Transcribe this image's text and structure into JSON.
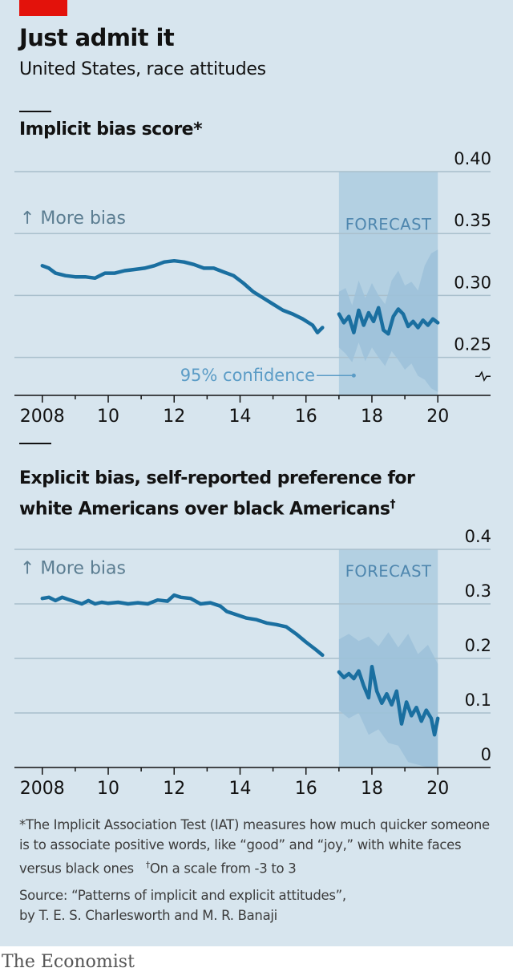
{
  "title": "Just admit it",
  "subtitle": "United States, race attitudes",
  "colors": {
    "background": "#d7e5ee",
    "line": "#1a6fa0",
    "forecast_band": "#b3d0e2",
    "confidence": "#9cc1d9",
    "accent_red": "#e3120b"
  },
  "chart_data": [
    {
      "type": "line",
      "title": "Implicit bias score*",
      "direction_label": "↑ More bias",
      "forecast_label": "FORECAST",
      "confidence_label": "95% confidence",
      "x_ticks": [
        2008,
        2010,
        2012,
        2014,
        2016,
        2018,
        2020
      ],
      "x_tick_labels": [
        "2008",
        "10",
        "12",
        "14",
        "16",
        "18",
        "20"
      ],
      "y_ticks": [
        0.25,
        0.3,
        0.35,
        0.4
      ],
      "y_tick_labels": [
        "0.25",
        "0.30",
        "0.35",
        "0.40"
      ],
      "xlim": [
        2007.3,
        2021.6
      ],
      "ylim": [
        0.22,
        0.4
      ],
      "y_axis_break": true,
      "forecast_range": [
        2017.0,
        2020.0
      ],
      "series": [
        {
          "role": "observed",
          "points": [
            [
              2008.0,
              0.324
            ],
            [
              2008.2,
              0.322
            ],
            [
              2008.4,
              0.318
            ],
            [
              2008.7,
              0.316
            ],
            [
              2009.0,
              0.315
            ],
            [
              2009.3,
              0.315
            ],
            [
              2009.6,
              0.314
            ],
            [
              2009.9,
              0.318
            ],
            [
              2010.2,
              0.318
            ],
            [
              2010.5,
              0.32
            ],
            [
              2010.8,
              0.321
            ],
            [
              2011.1,
              0.322
            ],
            [
              2011.4,
              0.324
            ],
            [
              2011.7,
              0.327
            ],
            [
              2012.0,
              0.328
            ],
            [
              2012.3,
              0.327
            ],
            [
              2012.6,
              0.325
            ],
            [
              2012.9,
              0.322
            ],
            [
              2013.2,
              0.322
            ],
            [
              2013.5,
              0.319
            ],
            [
              2013.8,
              0.316
            ],
            [
              2014.1,
              0.31
            ],
            [
              2014.4,
              0.303
            ],
            [
              2014.7,
              0.298
            ],
            [
              2015.0,
              0.293
            ],
            [
              2015.3,
              0.288
            ],
            [
              2015.6,
              0.285
            ],
            [
              2015.9,
              0.281
            ],
            [
              2016.2,
              0.276
            ],
            [
              2016.35,
              0.27
            ],
            [
              2016.5,
              0.274
            ]
          ]
        },
        {
          "role": "forecast",
          "points": [
            [
              2017.0,
              0.285
            ],
            [
              2017.15,
              0.278
            ],
            [
              2017.3,
              0.283
            ],
            [
              2017.45,
              0.27
            ],
            [
              2017.6,
              0.288
            ],
            [
              2017.75,
              0.276
            ],
            [
              2017.9,
              0.286
            ],
            [
              2018.05,
              0.279
            ],
            [
              2018.2,
              0.29
            ],
            [
              2018.35,
              0.272
            ],
            [
              2018.5,
              0.269
            ],
            [
              2018.65,
              0.283
            ],
            [
              2018.8,
              0.289
            ],
            [
              2018.95,
              0.285
            ],
            [
              2019.1,
              0.275
            ],
            [
              2019.25,
              0.279
            ],
            [
              2019.4,
              0.274
            ],
            [
              2019.55,
              0.28
            ],
            [
              2019.7,
              0.276
            ],
            [
              2019.85,
              0.281
            ],
            [
              2020.0,
              0.278
            ]
          ]
        },
        {
          "role": "confidence",
          "upper": [
            [
              2017.0,
              0.303
            ],
            [
              2017.2,
              0.306
            ],
            [
              2017.4,
              0.292
            ],
            [
              2017.6,
              0.312
            ],
            [
              2017.8,
              0.298
            ],
            [
              2018.0,
              0.31
            ],
            [
              2018.2,
              0.3
            ],
            [
              2018.4,
              0.293
            ],
            [
              2018.6,
              0.312
            ],
            [
              2018.8,
              0.32
            ],
            [
              2019.0,
              0.308
            ],
            [
              2019.2,
              0.311
            ],
            [
              2019.4,
              0.304
            ],
            [
              2019.6,
              0.324
            ],
            [
              2019.8,
              0.334
            ],
            [
              2020.0,
              0.337
            ]
          ],
          "lower": [
            [
              2017.0,
              0.258
            ],
            [
              2017.2,
              0.253
            ],
            [
              2017.4,
              0.246
            ],
            [
              2017.6,
              0.262
            ],
            [
              2017.8,
              0.247
            ],
            [
              2018.0,
              0.258
            ],
            [
              2018.2,
              0.25
            ],
            [
              2018.4,
              0.243
            ],
            [
              2018.6,
              0.255
            ],
            [
              2018.8,
              0.248
            ],
            [
              2019.0,
              0.24
            ],
            [
              2019.2,
              0.245
            ],
            [
              2019.4,
              0.235
            ],
            [
              2019.6,
              0.232
            ],
            [
              2019.8,
              0.225
            ],
            [
              2020.0,
              0.222
            ]
          ]
        }
      ]
    },
    {
      "type": "line",
      "title_line1": "Explicit bias, self-reported preference for",
      "title_line2": "white Americans over black Americans",
      "title_mark": "†",
      "direction_label": "↑ More bias",
      "forecast_label": "FORECAST",
      "x_ticks": [
        2008,
        2010,
        2012,
        2014,
        2016,
        2018,
        2020
      ],
      "x_tick_labels": [
        "2008",
        "10",
        "12",
        "14",
        "16",
        "18",
        "20"
      ],
      "y_ticks": [
        0,
        0.1,
        0.2,
        0.3,
        0.4
      ],
      "y_tick_labels": [
        "0",
        "0.1",
        "0.2",
        "0.3",
        "0.4"
      ],
      "xlim": [
        2007.3,
        2021.6
      ],
      "ylim": [
        0,
        0.4
      ],
      "forecast_range": [
        2017.0,
        2020.0
      ],
      "series": [
        {
          "role": "observed",
          "points": [
            [
              2008.0,
              0.31
            ],
            [
              2008.2,
              0.312
            ],
            [
              2008.4,
              0.306
            ],
            [
              2008.6,
              0.312
            ],
            [
              2008.8,
              0.308
            ],
            [
              2009.0,
              0.304
            ],
            [
              2009.2,
              0.3
            ],
            [
              2009.4,
              0.306
            ],
            [
              2009.6,
              0.3
            ],
            [
              2009.8,
              0.303
            ],
            [
              2010.0,
              0.301
            ],
            [
              2010.3,
              0.303
            ],
            [
              2010.6,
              0.3
            ],
            [
              2010.9,
              0.302
            ],
            [
              2011.2,
              0.3
            ],
            [
              2011.5,
              0.307
            ],
            [
              2011.8,
              0.305
            ],
            [
              2012.0,
              0.316
            ],
            [
              2012.2,
              0.312
            ],
            [
              2012.5,
              0.31
            ],
            [
              2012.8,
              0.3
            ],
            [
              2013.1,
              0.302
            ],
            [
              2013.4,
              0.296
            ],
            [
              2013.6,
              0.286
            ],
            [
              2013.9,
              0.28
            ],
            [
              2014.2,
              0.274
            ],
            [
              2014.5,
              0.271
            ],
            [
              2014.8,
              0.265
            ],
            [
              2015.1,
              0.262
            ],
            [
              2015.4,
              0.258
            ],
            [
              2015.7,
              0.245
            ],
            [
              2016.0,
              0.23
            ],
            [
              2016.3,
              0.216
            ],
            [
              2016.5,
              0.206
            ]
          ]
        },
        {
          "role": "forecast",
          "points": [
            [
              2017.0,
              0.175
            ],
            [
              2017.15,
              0.165
            ],
            [
              2017.3,
              0.172
            ],
            [
              2017.45,
              0.163
            ],
            [
              2017.6,
              0.177
            ],
            [
              2017.75,
              0.15
            ],
            [
              2017.9,
              0.128
            ],
            [
              2018.0,
              0.185
            ],
            [
              2018.15,
              0.14
            ],
            [
              2018.3,
              0.118
            ],
            [
              2018.45,
              0.135
            ],
            [
              2018.6,
              0.115
            ],
            [
              2018.75,
              0.14
            ],
            [
              2018.9,
              0.08
            ],
            [
              2019.05,
              0.12
            ],
            [
              2019.2,
              0.095
            ],
            [
              2019.35,
              0.11
            ],
            [
              2019.5,
              0.085
            ],
            [
              2019.65,
              0.105
            ],
            [
              2019.8,
              0.09
            ],
            [
              2019.9,
              0.06
            ],
            [
              2020.0,
              0.09
            ]
          ]
        },
        {
          "role": "confidence",
          "upper": [
            [
              2017.0,
              0.235
            ],
            [
              2017.3,
              0.245
            ],
            [
              2017.6,
              0.232
            ],
            [
              2017.9,
              0.24
            ],
            [
              2018.2,
              0.222
            ],
            [
              2018.5,
              0.248
            ],
            [
              2018.8,
              0.22
            ],
            [
              2019.1,
              0.245
            ],
            [
              2019.4,
              0.208
            ],
            [
              2019.7,
              0.225
            ],
            [
              2020.0,
              0.19
            ]
          ],
          "lower": [
            [
              2017.0,
              0.105
            ],
            [
              2017.3,
              0.09
            ],
            [
              2017.6,
              0.1
            ],
            [
              2017.9,
              0.06
            ],
            [
              2018.2,
              0.07
            ],
            [
              2018.5,
              0.045
            ],
            [
              2018.8,
              0.04
            ],
            [
              2019.1,
              0.01
            ],
            [
              2019.4,
              0.005
            ],
            [
              2019.7,
              0.0
            ],
            [
              2020.0,
              0.0
            ]
          ]
        }
      ]
    }
  ],
  "footnote_text": "*The Implicit Association Test (IAT) measures how much quicker someone is to associate positive words, like “good” and “joy,” with white faces versus black ones",
  "footnote_mark": "†",
  "footnote_scale": "On a scale from -3 to 3",
  "source_line1": "Source: “Patterns of implicit and explicit attitudes”,",
  "source_line2": "by T. E. S. Charlesworth and M. R. Banaji",
  "brand": "The Economist"
}
